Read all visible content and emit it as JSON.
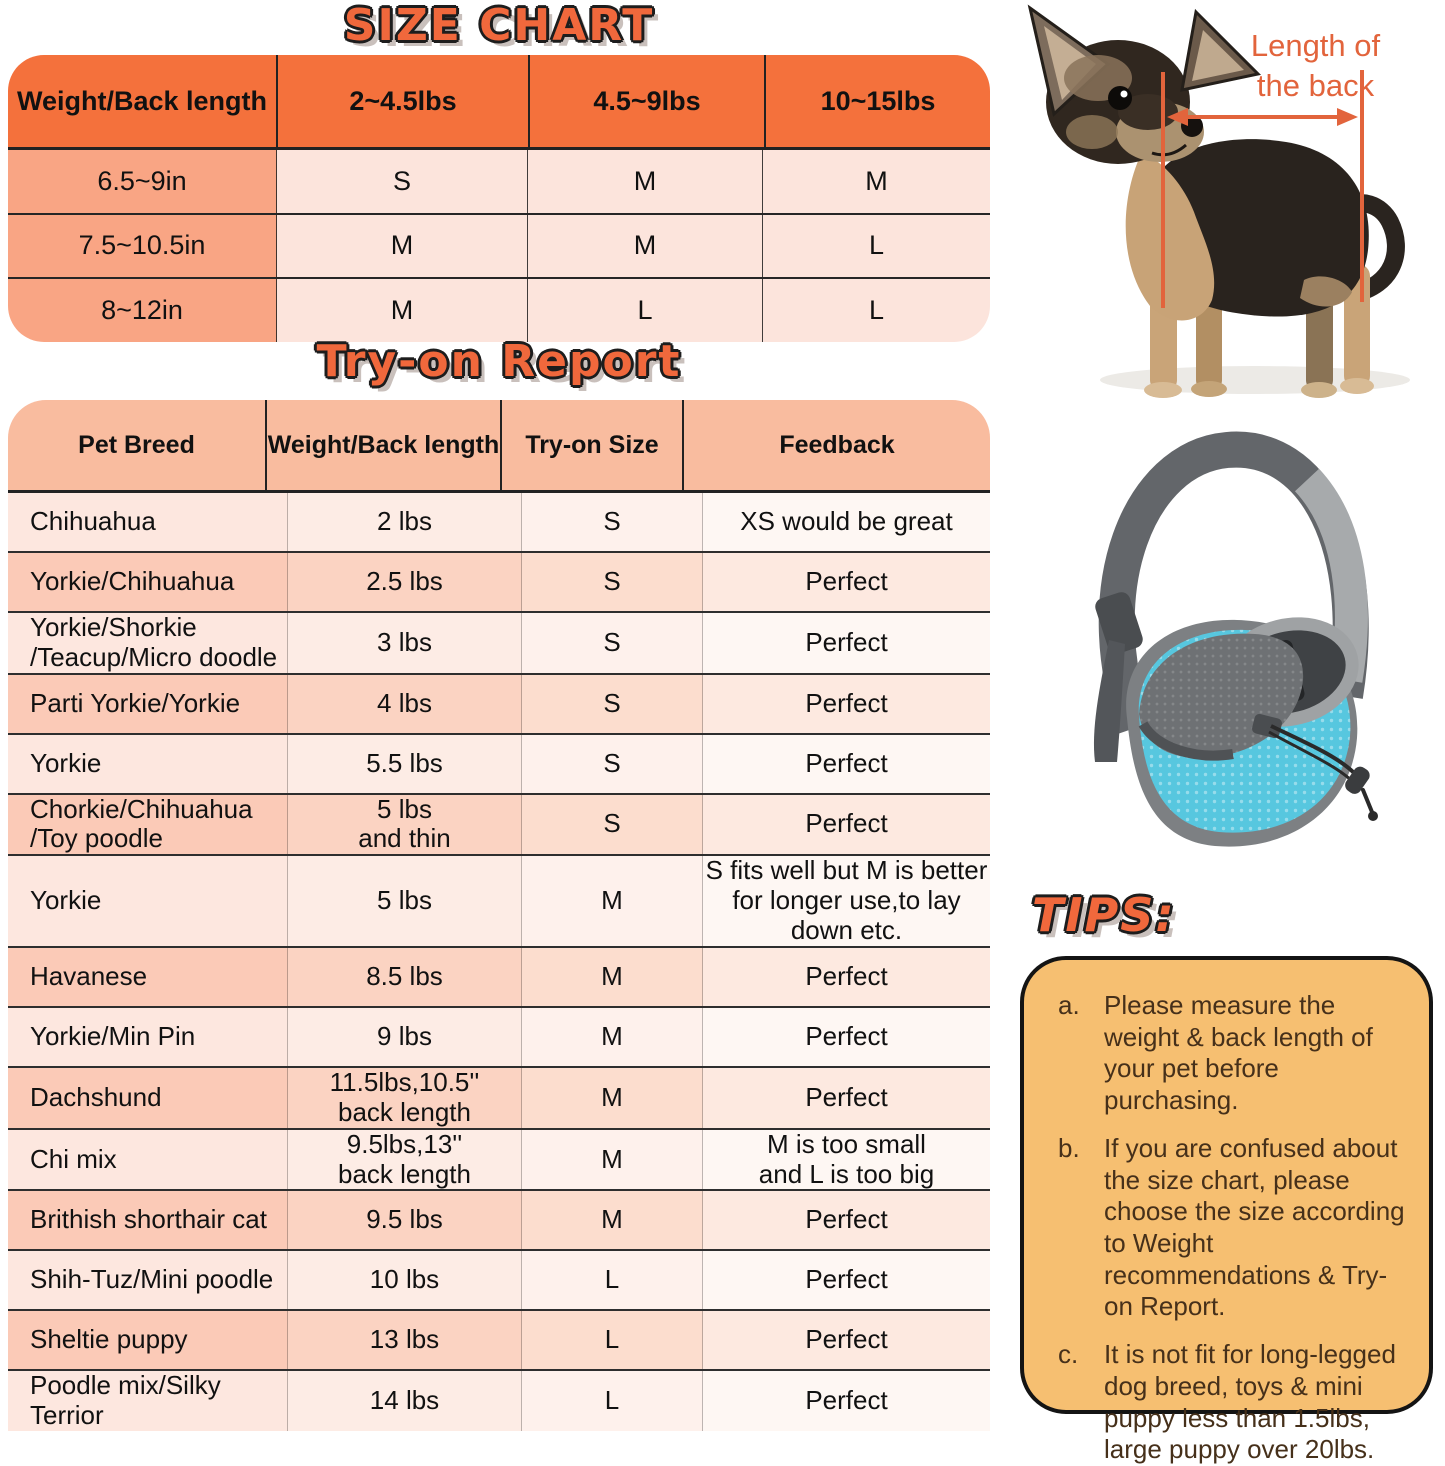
{
  "size_chart": {
    "title": "SIZE CHART",
    "header": [
      "Weight/Back length",
      "2~4.5lbs",
      "4.5~9lbs",
      "10~15lbs"
    ],
    "rows": [
      {
        "label": "6.5~9in",
        "values": [
          "S",
          "M",
          "M"
        ]
      },
      {
        "label": "7.5~10.5in",
        "values": [
          "M",
          "M",
          "L"
        ]
      },
      {
        "label": "8~12in",
        "values": [
          "M",
          "L",
          "L"
        ]
      }
    ]
  },
  "tryon": {
    "title": "Try-on Report",
    "header": [
      "Pet Breed",
      "Weight/Back length",
      "Try-on Size",
      "Feedback"
    ],
    "rows": [
      [
        "Chihuahua",
        "2 lbs",
        "S",
        "XS would be great"
      ],
      [
        "Yorkie/Chihuahua",
        "2.5 lbs",
        "S",
        "Perfect"
      ],
      [
        "Yorkie/Shorkie\n/Teacup/Micro doodle",
        "3 lbs",
        "S",
        "Perfect"
      ],
      [
        "Parti Yorkie/Yorkie",
        "4 lbs",
        "S",
        "Perfect"
      ],
      [
        "Yorkie",
        "5.5 lbs",
        "S",
        "Perfect"
      ],
      [
        "Chorkie/Chihuahua\n/Toy poodle",
        "5 lbs\nand thin",
        "S",
        "Perfect"
      ],
      [
        "Yorkie",
        "5 lbs",
        "M",
        "S fits well but M is better\nfor longer use,to lay down etc."
      ],
      [
        "Havanese",
        "8.5 lbs",
        "M",
        "Perfect"
      ],
      [
        "Yorkie/Min Pin",
        "9 lbs",
        "M",
        "Perfect"
      ],
      [
        "Dachshund",
        "11.5lbs,10.5''\nback length",
        "M",
        "Perfect"
      ],
      [
        "Chi mix",
        "9.5lbs,13''\nback length",
        "M",
        "M is too small\nand L is too big"
      ],
      [
        "Brithish shorthair cat",
        "9.5 lbs",
        "M",
        "Perfect"
      ],
      [
        "Shih-Tuz/Mini poodle",
        "10 lbs",
        "L",
        "Perfect"
      ],
      [
        "Sheltie puppy",
        "13 lbs",
        "L",
        "Perfect"
      ],
      [
        "Poodle mix/Silky\nTerrior",
        "14 lbs",
        "L",
        "Perfect"
      ]
    ]
  },
  "dog_figure": {
    "annotation": "Length of\nthe back"
  },
  "tips": {
    "title": "TIPS:",
    "items": [
      {
        "label": "a.",
        "text": "Please measure the weight & back length of your pet before purchasing."
      },
      {
        "label": "b.",
        "text": "If you are confused about the size chart, please choose the size according to Weight recommendations & Try-on Report."
      },
      {
        "label": "c.",
        "text": "It is not fit for long-legged dog breed, toys & mini puppy less than 1.5lbs, large puppy over 20lbs."
      }
    ]
  },
  "colors": {
    "accent_orange": "#f0683c",
    "size_header_bg": "#f4713c",
    "size_label_col_bg": "#f9a584",
    "size_cell_bg": "#fce4dc",
    "tryon_header_bg": "#f9bc9f",
    "row_light_bg": "#fde7df",
    "row_dark_bg": "#fbcab7",
    "tips_box_bg": "#f6bf71",
    "annotation_orange": "#e2643c",
    "carrier_blue": "#57c7df"
  },
  "chart_data": [
    {
      "type": "table",
      "title": "SIZE CHART",
      "columns": [
        "Weight/Back length",
        "2~4.5lbs",
        "4.5~9lbs",
        "10~15lbs"
      ],
      "rows": [
        [
          "6.5~9in",
          "S",
          "M",
          "M"
        ],
        [
          "7.5~10.5in",
          "M",
          "M",
          "L"
        ],
        [
          "8~12in",
          "M",
          "L",
          "L"
        ]
      ]
    },
    {
      "type": "table",
      "title": "Try-on Report",
      "columns": [
        "Pet Breed",
        "Weight/Back length",
        "Try-on Size",
        "Feedback"
      ],
      "rows": [
        [
          "Chihuahua",
          "2 lbs",
          "S",
          "XS would be great"
        ],
        [
          "Yorkie/Chihuahua",
          "2.5 lbs",
          "S",
          "Perfect"
        ],
        [
          "Yorkie/Shorkie /Teacup/Micro doodle",
          "3 lbs",
          "S",
          "Perfect"
        ],
        [
          "Parti Yorkie/Yorkie",
          "4 lbs",
          "S",
          "Perfect"
        ],
        [
          "Yorkie",
          "5.5 lbs",
          "S",
          "Perfect"
        ],
        [
          "Chorkie/Chihuahua /Toy poodle",
          "5 lbs and thin",
          "S",
          "Perfect"
        ],
        [
          "Yorkie",
          "5 lbs",
          "M",
          "S fits well but M is better for longer use,to lay down etc."
        ],
        [
          "Havanese",
          "8.5 lbs",
          "M",
          "Perfect"
        ],
        [
          "Yorkie/Min Pin",
          "9 lbs",
          "M",
          "Perfect"
        ],
        [
          "Dachshund",
          "11.5lbs,10.5'' back length",
          "M",
          "Perfect"
        ],
        [
          "Chi mix",
          "9.5lbs,13'' back length",
          "M",
          "M is too small and L is too big"
        ],
        [
          "Brithish shorthair cat",
          "9.5 lbs",
          "M",
          "Perfect"
        ],
        [
          "Shih-Tuz/Mini poodle",
          "10 lbs",
          "L",
          "Perfect"
        ],
        [
          "Sheltie puppy",
          "13 lbs",
          "L",
          "Perfect"
        ],
        [
          "Poodle mix/Silky Terrior",
          "14 lbs",
          "L",
          "Perfect"
        ]
      ]
    }
  ]
}
